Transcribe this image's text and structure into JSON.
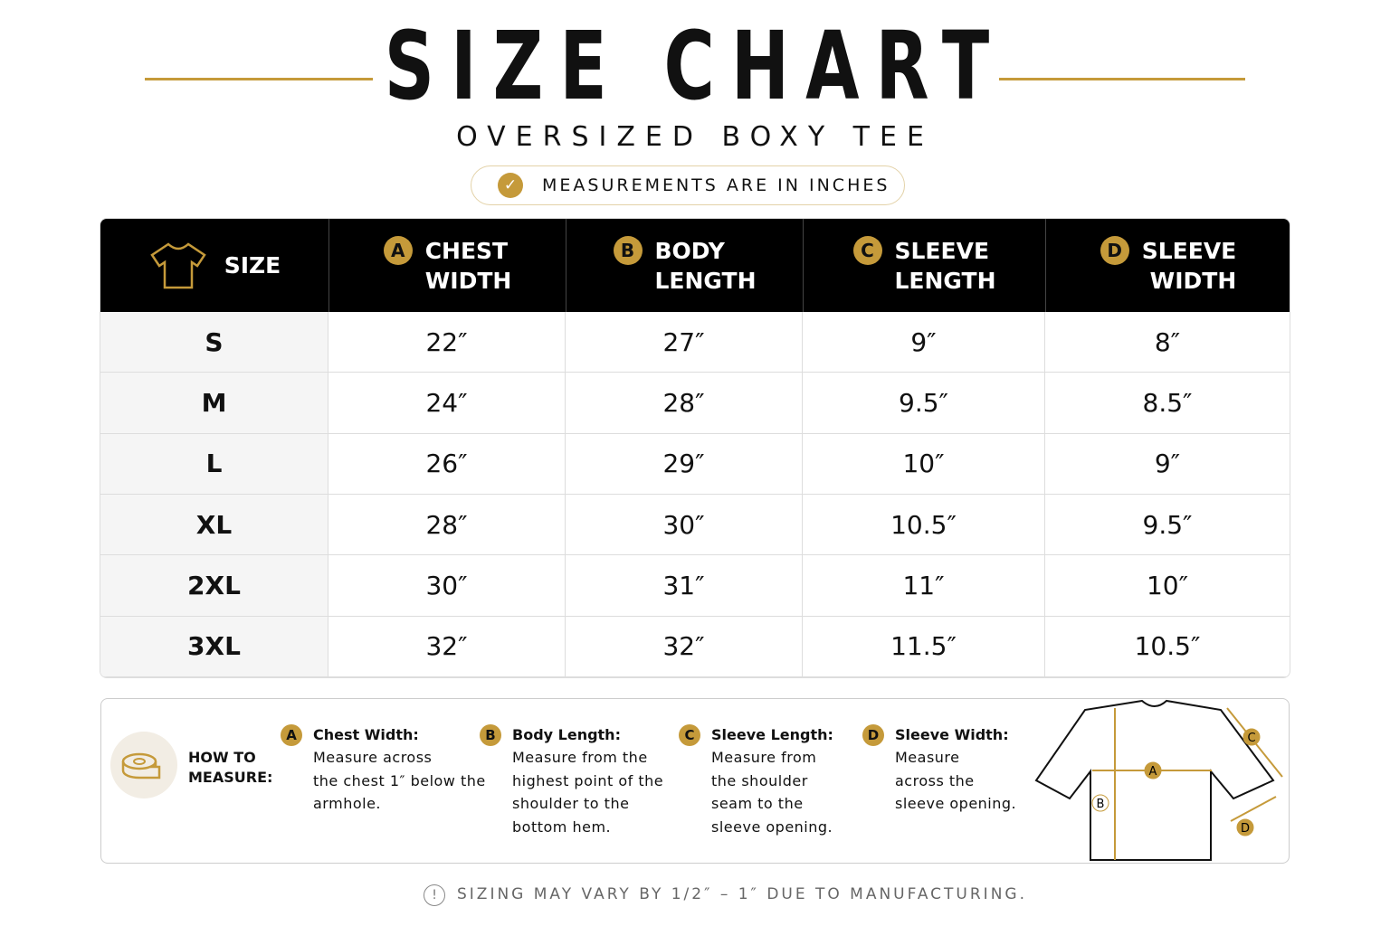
{
  "header": {
    "title": "SIZE CHART",
    "subtitle": "OVERSIZED BOXY TEE",
    "badge": "MEASUREMENTS ARE IN INCHES"
  },
  "table": {
    "size_header": "SIZE",
    "columns": [
      {
        "letter": "A",
        "lines": [
          "CHEST",
          "WIDTH"
        ]
      },
      {
        "letter": "B",
        "lines": [
          "BODY",
          "LENGTH"
        ]
      },
      {
        "letter": "C",
        "lines": [
          "SLEEVE",
          "LENGTH"
        ]
      },
      {
        "letter": "D",
        "lines": [
          "SLEEVE",
          "WIDTH"
        ]
      }
    ],
    "rows": [
      [
        "S",
        "22″",
        "27″",
        "9″",
        "8″"
      ],
      [
        "M",
        "24″",
        "28″",
        "9.5″",
        "8.5″"
      ],
      [
        "L",
        "26″",
        "29″",
        "10″",
        "9″"
      ],
      [
        "XL",
        "28″",
        "30″",
        "10.5″",
        "9.5″"
      ],
      [
        "2XL",
        "30″",
        "31″",
        "11″",
        "10″"
      ],
      [
        "3XL",
        "32″",
        "32″",
        "11.5″",
        "10.5″"
      ]
    ]
  },
  "how_to": {
    "lines": [
      "HOW TO",
      "MEASURE:"
    ],
    "items": [
      {
        "letter": "A",
        "title": "Chest Width:",
        "lines": [
          "Measure across",
          "the chest 1″ below the",
          "armhole."
        ]
      },
      {
        "letter": "B",
        "title": "Body Length:",
        "lines": [
          "Measure from the",
          "highest point of the",
          "shoulder to the",
          "bottom hem."
        ]
      },
      {
        "letter": "C",
        "title": "Sleeve Length:",
        "lines": [
          "Measure from",
          "the shoulder",
          "seam to the",
          "sleeve opening."
        ]
      },
      {
        "letter": "D",
        "title": "Sleeve Width:",
        "lines": [
          "Measure",
          "across the",
          "sleeve opening."
        ]
      }
    ],
    "diagram_labels": [
      "A",
      "B",
      "C",
      "D"
    ]
  },
  "footer": {
    "note": "SIZING MAY VARY BY 1/2″ – 1″ DUE TO MANUFACTURING."
  }
}
